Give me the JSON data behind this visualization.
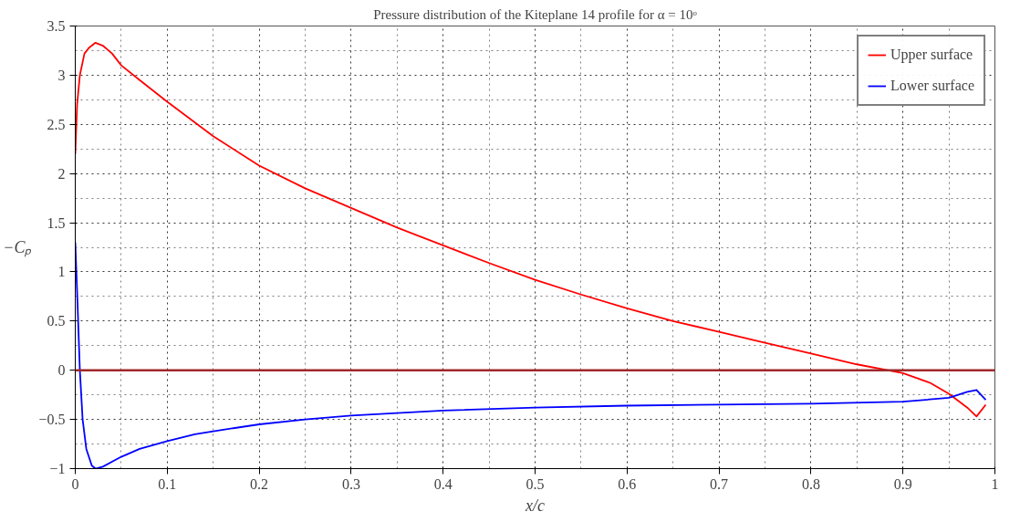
{
  "chart_data": {
    "type": "line",
    "title": "Pressure distribution of the Kiteplane 14 profile for α = 10ᵒ",
    "xlabel": "x/c",
    "ylabel": "−Cₚ",
    "xlim": [
      0,
      1
    ],
    "ylim": [
      -1,
      3.5
    ],
    "xticks": [
      0,
      0.1,
      0.2,
      0.3,
      0.4,
      0.5,
      0.6,
      0.7,
      0.8,
      0.9,
      1
    ],
    "yticks": [
      -1,
      -0.5,
      0,
      0.5,
      1,
      1.5,
      2,
      2.5,
      3,
      3.5
    ],
    "grid": true,
    "legend": "top right",
    "line_style": "solid",
    "marker": "none",
    "ref_lines": [
      {
        "axis": "y",
        "value": 0,
        "color": "#a0282a",
        "line_style": "solid"
      }
    ],
    "series": [
      {
        "name": "Upper surface",
        "color": "#ff0000",
        "x": [
          0,
          0.002,
          0.005,
          0.01,
          0.015,
          0.022,
          0.03,
          0.04,
          0.05,
          0.07,
          0.1,
          0.15,
          0.2,
          0.25,
          0.3,
          0.35,
          0.4,
          0.45,
          0.5,
          0.55,
          0.6,
          0.65,
          0.7,
          0.75,
          0.8,
          0.85,
          0.9,
          0.93,
          0.95,
          0.97,
          0.98,
          0.99
        ],
        "values": [
          2.2,
          2.7,
          3.0,
          3.22,
          3.28,
          3.33,
          3.3,
          3.22,
          3.1,
          2.95,
          2.73,
          2.38,
          2.08,
          1.85,
          1.65,
          1.45,
          1.27,
          1.09,
          0.92,
          0.77,
          0.63,
          0.5,
          0.39,
          0.28,
          0.17,
          0.06,
          -0.03,
          -0.13,
          -0.24,
          -0.38,
          -0.47,
          -0.35
        ]
      },
      {
        "name": "Lower surface",
        "color": "#0000ff",
        "x": [
          0,
          0.002,
          0.005,
          0.008,
          0.012,
          0.018,
          0.022,
          0.03,
          0.05,
          0.07,
          0.1,
          0.13,
          0.15,
          0.2,
          0.25,
          0.3,
          0.4,
          0.5,
          0.6,
          0.7,
          0.8,
          0.9,
          0.95,
          0.97,
          0.98,
          0.99
        ],
        "values": [
          1.3,
          0.8,
          0,
          -0.5,
          -0.8,
          -0.97,
          -1.0,
          -0.98,
          -0.88,
          -0.8,
          -0.72,
          -0.65,
          -0.62,
          -0.55,
          -0.5,
          -0.46,
          -0.41,
          -0.38,
          -0.36,
          -0.35,
          -0.34,
          -0.32,
          -0.28,
          -0.22,
          -0.2,
          -0.3
        ]
      }
    ]
  }
}
